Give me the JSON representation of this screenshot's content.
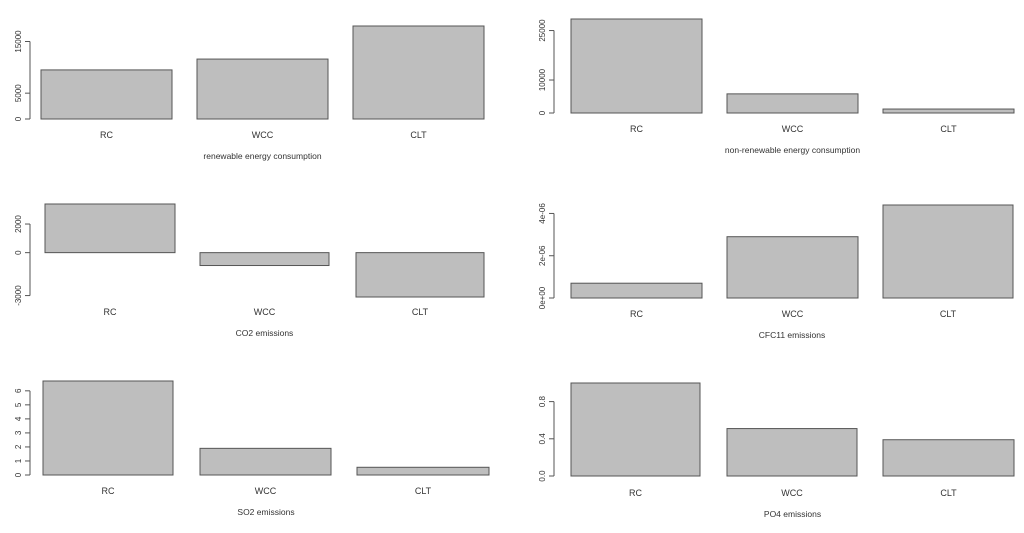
{
  "chart_data": [
    {
      "type": "bar",
      "categories": [
        "RC",
        "WCC",
        "CLT"
      ],
      "values": [
        9500,
        11600,
        18000
      ],
      "title": "",
      "xlabel": "renewable energy consumption",
      "ylabel": "",
      "ylim": [
        0,
        18000
      ],
      "yticks": [
        0,
        5000,
        15000
      ],
      "ytick_labels": [
        "0",
        "5000",
        "15000"
      ]
    },
    {
      "type": "bar",
      "categories": [
        "RC",
        "WCC",
        "CLT"
      ],
      "values": [
        28500,
        5800,
        1200
      ],
      "title": "",
      "xlabel": "non-renewable energy consumption",
      "ylabel": "",
      "ylim": [
        0,
        28500
      ],
      "yticks": [
        0,
        10000,
        25000
      ],
      "ytick_labels": [
        "0",
        "10000",
        "25000"
      ]
    },
    {
      "type": "bar",
      "categories": [
        "RC",
        "WCC",
        "CLT"
      ],
      "values": [
        3400,
        -900,
        -3100
      ],
      "title": "",
      "xlabel": "CO2 emissions",
      "ylabel": "",
      "ylim": [
        -3100,
        3400
      ],
      "yticks": [
        -3000,
        0,
        2000
      ],
      "ytick_labels": [
        "-3000",
        "0",
        "2000"
      ]
    },
    {
      "type": "bar",
      "categories": [
        "RC",
        "WCC",
        "CLT"
      ],
      "values": [
        7e-07,
        2.9e-06,
        4.4e-06
      ],
      "title": "",
      "xlabel": "CFC11 emissions",
      "ylabel": "",
      "ylim": [
        0,
        4.4e-06
      ],
      "yticks": [
        0,
        2e-06,
        4e-06
      ],
      "ytick_labels": [
        "0e+00",
        "2e-06",
        "4e-06"
      ]
    },
    {
      "type": "bar",
      "categories": [
        "RC",
        "WCC",
        "CLT"
      ],
      "values": [
        6.7,
        1.9,
        0.55
      ],
      "title": "",
      "xlabel": "SO2 emissions",
      "ylabel": "",
      "ylim": [
        0,
        6.7
      ],
      "yticks": [
        0,
        1,
        2,
        3,
        4,
        5,
        6
      ],
      "ytick_labels": [
        "0",
        "1",
        "2",
        "3",
        "4",
        "5",
        "6"
      ]
    },
    {
      "type": "bar",
      "categories": [
        "RC",
        "WCC",
        "CLT"
      ],
      "values": [
        1.0,
        0.51,
        0.39
      ],
      "title": "",
      "xlabel": "PO4 emissions",
      "ylabel": "",
      "ylim": [
        0,
        1.0
      ],
      "yticks": [
        0,
        0.4,
        0.8
      ],
      "ytick_labels": [
        "0.0",
        "0.4",
        "0.8"
      ]
    }
  ],
  "colors": {
    "bar_fill": "#bebebe",
    "bar_stroke": "#555555",
    "text": "#333333"
  }
}
